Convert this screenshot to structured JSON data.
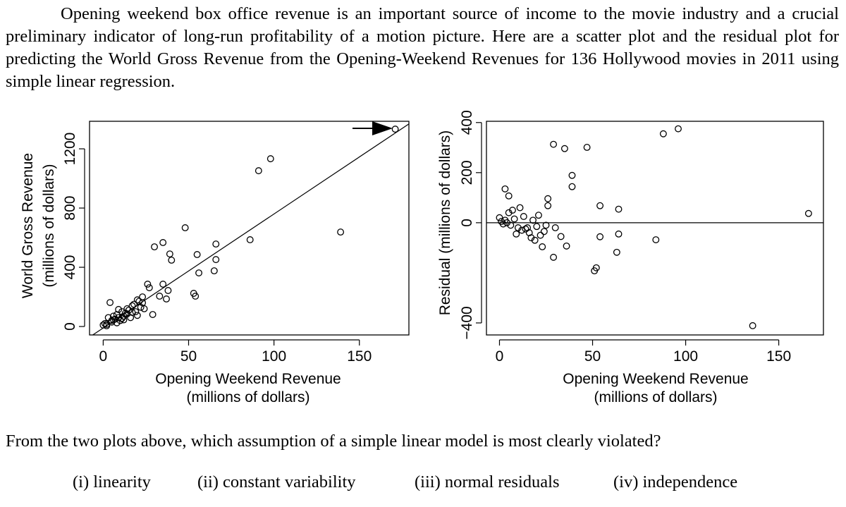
{
  "paragraph": "Opening weekend box office revenue is an important source of income to the movie industry and a crucial preliminary indicator of long-run profitability of a motion picture. Here are a scatter plot and the residual plot for predicting the World Gross Revenue from the Opening-Weekend Revenues for 136 Hollywood movies in 2011 using simple linear regression.",
  "chart_data": [
    {
      "type": "scatter",
      "color": "#000000",
      "xlabel": [
        "Opening Weekend Revenue",
        "(millions of dollars)"
      ],
      "ylabel": [
        "World Gross Revenue",
        "(millions of dollars)"
      ],
      "xlim": [
        -8,
        179
      ],
      "ylim": [
        -57,
        1386
      ],
      "xticks": [
        0,
        50,
        100,
        150
      ],
      "yticks": [
        0,
        400,
        800,
        1200
      ],
      "fit_line": {
        "intercept": -10,
        "slope": 7.7
      },
      "x": [
        171,
        98,
        91,
        48,
        35,
        30,
        39,
        40,
        55,
        66,
        66,
        65,
        56,
        86,
        139,
        53,
        54,
        26,
        27,
        35,
        38,
        37,
        33,
        29,
        4,
        0,
        1,
        2,
        3,
        5,
        6,
        7,
        8,
        9,
        10,
        11,
        12,
        13,
        14,
        15,
        16,
        17,
        18,
        19,
        20,
        21,
        22,
        23,
        24,
        2,
        5,
        8,
        11,
        14,
        17,
        20,
        23,
        6,
        9,
        12
      ],
      "values": [
        1333,
        1133,
        1052,
        667,
        567,
        538,
        490,
        448,
        486,
        557,
        452,
        376,
        362,
        586,
        638,
        224,
        205,
        286,
        262,
        286,
        243,
        186,
        205,
        81,
        162,
        10,
        20,
        15,
        60,
        30,
        45,
        50,
        80,
        60,
        40,
        100,
        70,
        90,
        120,
        110,
        60,
        140,
        150,
        100,
        180,
        170,
        130,
        160,
        120,
        5,
        40,
        25,
        55,
        85,
        95,
        75,
        200,
        70,
        115,
        45
      ]
    },
    {
      "type": "scatter",
      "color": "#000000",
      "xlabel": [
        "Opening Weekend Revenue",
        "(millions of dollars)"
      ],
      "ylabel": [
        "Residual  (millions of dollars)"
      ],
      "xlim": [
        -7,
        174
      ],
      "ylim": [
        -448,
        405
      ],
      "xticks": [
        0,
        50,
        100,
        150
      ],
      "yticks": [
        {
          "value": -400,
          "label": "−400"
        },
        0,
        200,
        400
      ],
      "hline": 0,
      "x": [
        166,
        96,
        88,
        136,
        29,
        35,
        47,
        39,
        39,
        54,
        64,
        3,
        5,
        26,
        26,
        54,
        64,
        63,
        84,
        52,
        51,
        29,
        23,
        36,
        0,
        1,
        2,
        3,
        4,
        6,
        8,
        10,
        12,
        14,
        16,
        18,
        20,
        22,
        24,
        5,
        9,
        13,
        17,
        21,
        11,
        15,
        19,
        7,
        25,
        30,
        33
      ],
      "values": [
        37,
        375,
        355,
        -411,
        313,
        296,
        301,
        189,
        144,
        68,
        54,
        135,
        107,
        96,
        68,
        -56,
        -45,
        -118,
        -68,
        -180,
        -192,
        -138,
        -96,
        -93,
        20,
        5,
        -5,
        10,
        0,
        -10,
        15,
        -20,
        -30,
        -25,
        -40,
        10,
        -15,
        -50,
        -35,
        40,
        -45,
        25,
        -60,
        30,
        60,
        -20,
        -70,
        50,
        -10,
        -20,
        -55
      ]
    }
  ],
  "question": "From the two plots above, which assumption of a simple linear model is most clearly violated?",
  "options": [
    "(i) linearity",
    "(ii) constant variability",
    "(iii) normal residuals",
    "(iv) independence"
  ]
}
